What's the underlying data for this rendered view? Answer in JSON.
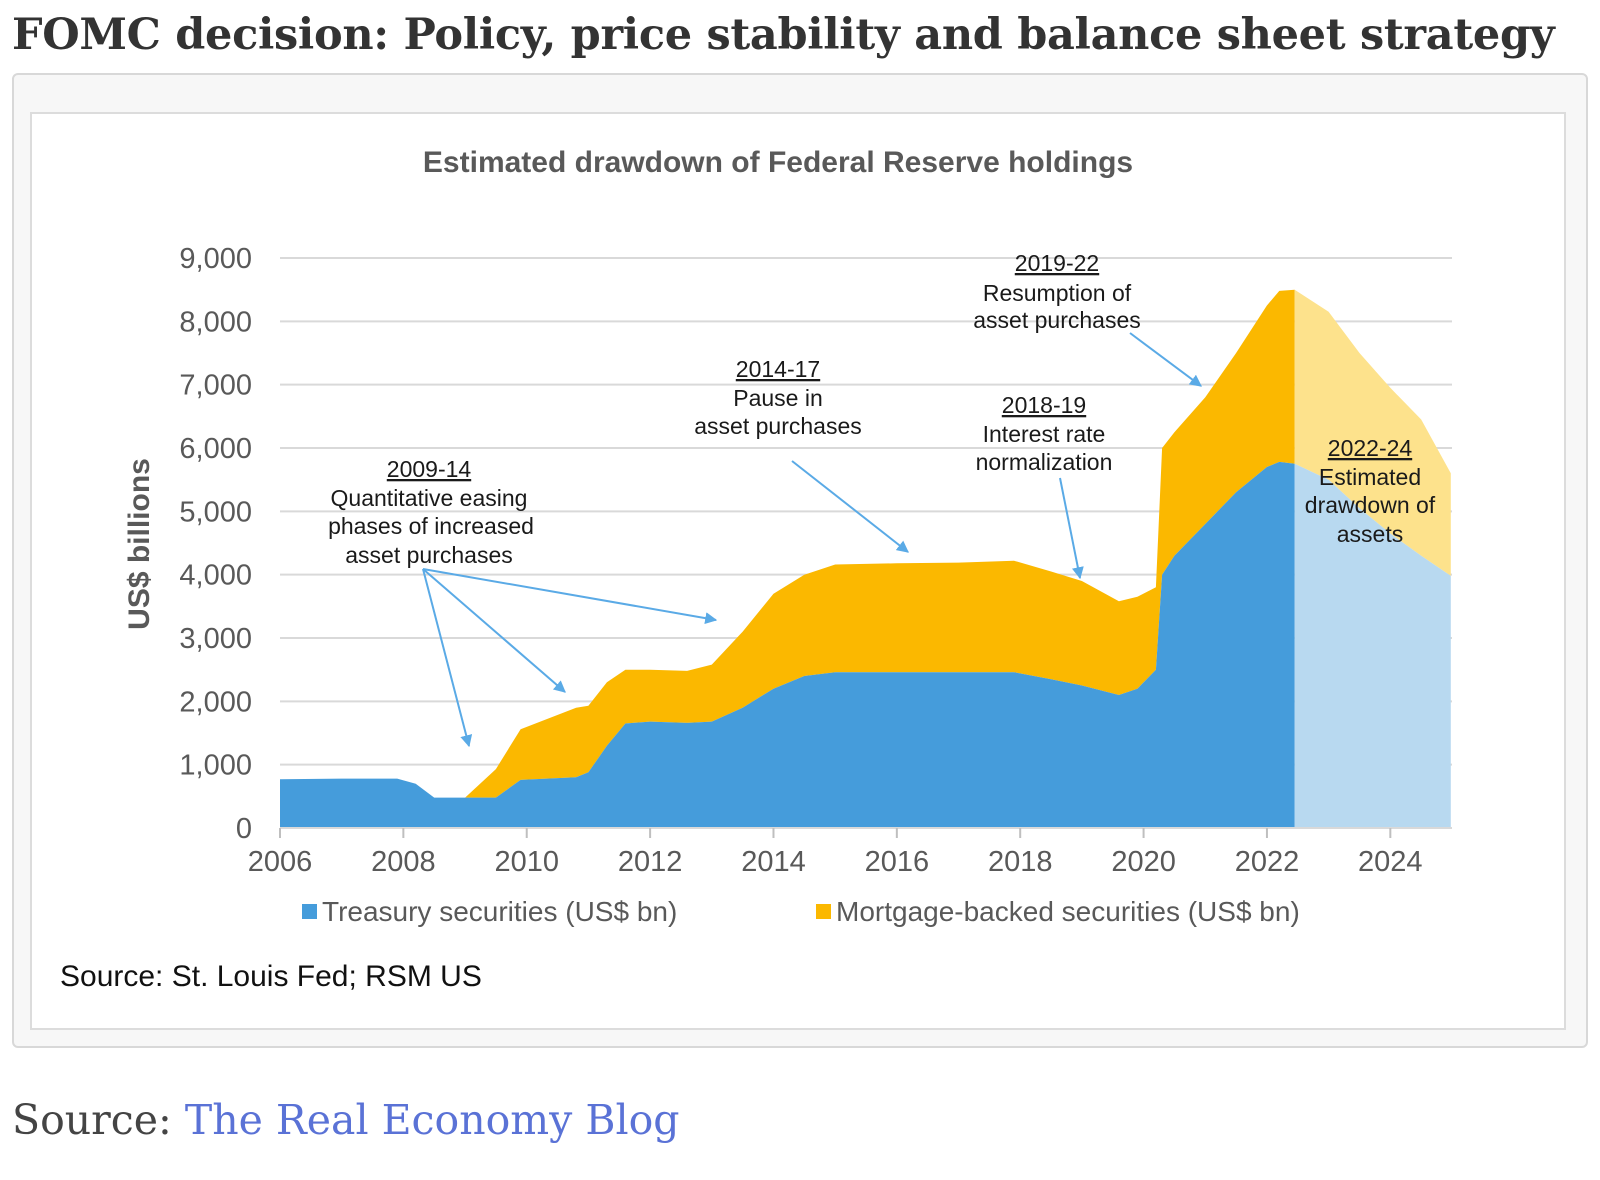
{
  "page": {
    "title": "FOMC decision: Policy, price stability and balance sheet strategy",
    "source_prefix": "Source: ",
    "source_link": "The Real Economy Blog"
  },
  "colors": {
    "treasury": "#459cdb",
    "mbs": "#fbb800",
    "treasury_est": "#b8d9f0",
    "mbs_est": "#fde28c",
    "arrow": "#5aaae6",
    "grid": "#d9d9d9"
  },
  "chart_data": {
    "type": "area",
    "stacked": true,
    "title": "Estimated drawdown of Federal Reserve holdings",
    "ylabel": "US$ billions",
    "xlabel": "",
    "ylim": [
      0,
      9000
    ],
    "xlim": [
      2006,
      2025
    ],
    "grid": true,
    "y_ticks": [
      "0",
      "1,000",
      "2,000",
      "3,000",
      "4,000",
      "5,000",
      "6,000",
      "7,000",
      "8,000",
      "9,000"
    ],
    "y_tick_values": [
      0,
      1000,
      2000,
      3000,
      4000,
      5000,
      6000,
      7000,
      8000,
      9000
    ],
    "x_ticks": [
      "2006",
      "2008",
      "2010",
      "2012",
      "2014",
      "2016",
      "2018",
      "2020",
      "2022",
      "2024"
    ],
    "x_tick_values": [
      2006,
      2008,
      2010,
      2012,
      2014,
      2016,
      2018,
      2020,
      2022,
      2024
    ],
    "estimate_start": 2022.45,
    "series": [
      {
        "name": "Treasury securities (US$ bn)",
        "x": [
          2006,
          2007,
          2007.9,
          2008.2,
          2008.5,
          2009.0,
          2009.5,
          2009.9,
          2010.8,
          2011.0,
          2011.3,
          2011.6,
          2012.0,
          2012.6,
          2013.0,
          2013.5,
          2014.0,
          2014.5,
          2015.0,
          2016.0,
          2017.0,
          2017.9,
          2018.5,
          2019.0,
          2019.6,
          2019.9,
          2020.2,
          2020.3,
          2020.5,
          2021.0,
          2021.5,
          2022.0,
          2022.2,
          2022.45,
          2023.0,
          2023.5,
          2024.0,
          2024.5,
          2024.98
        ],
        "values": [
          770,
          780,
          780,
          700,
          480,
          480,
          480,
          760,
          800,
          880,
          1300,
          1650,
          1680,
          1660,
          1680,
          1900,
          2200,
          2400,
          2460,
          2460,
          2460,
          2460,
          2350,
          2250,
          2100,
          2200,
          2500,
          4000,
          4300,
          4800,
          5300,
          5700,
          5780,
          5750,
          5500,
          5050,
          4650,
          4300,
          3980
        ]
      },
      {
        "name": "Mortgage-backed securities (US$ bn)",
        "x": [
          2006,
          2007,
          2007.9,
          2008.2,
          2008.5,
          2009.0,
          2009.5,
          2009.9,
          2010.8,
          2011.0,
          2011.3,
          2011.6,
          2012.0,
          2012.6,
          2013.0,
          2013.5,
          2014.0,
          2014.5,
          2015.0,
          2016.0,
          2017.0,
          2017.9,
          2018.5,
          2019.0,
          2019.6,
          2019.9,
          2020.2,
          2020.3,
          2020.5,
          2021.0,
          2021.5,
          2022.0,
          2022.2,
          2022.45,
          2023.0,
          2023.5,
          2024.0,
          2024.5,
          2024.98
        ],
        "values": [
          0,
          0,
          0,
          0,
          0,
          0,
          450,
          800,
          1100,
          1050,
          1000,
          850,
          820,
          820,
          900,
          1200,
          1500,
          1600,
          1700,
          1720,
          1730,
          1760,
          1700,
          1650,
          1480,
          1450,
          1300,
          2000,
          1950,
          2000,
          2200,
          2550,
          2700,
          2750,
          2650,
          2450,
          2300,
          2150,
          1620
        ]
      }
    ],
    "annotations": [
      {
        "period": "2009-14",
        "lines": [
          "Quantitative easing",
          "phases of increased",
          "asset purchases"
        ]
      },
      {
        "period": "2014-17",
        "lines": [
          "Pause  in",
          "asset purchases"
        ]
      },
      {
        "period": "2018-19",
        "lines": [
          "Interest rate",
          "normalization"
        ]
      },
      {
        "period": "2019-22",
        "lines": [
          "Resumption of",
          "asset purchases"
        ]
      },
      {
        "period": "2022-24",
        "lines": [
          "Estimated",
          "drawdown of",
          "assets"
        ]
      }
    ],
    "source_note": "Source: St. Louis Fed; RSM US"
  }
}
